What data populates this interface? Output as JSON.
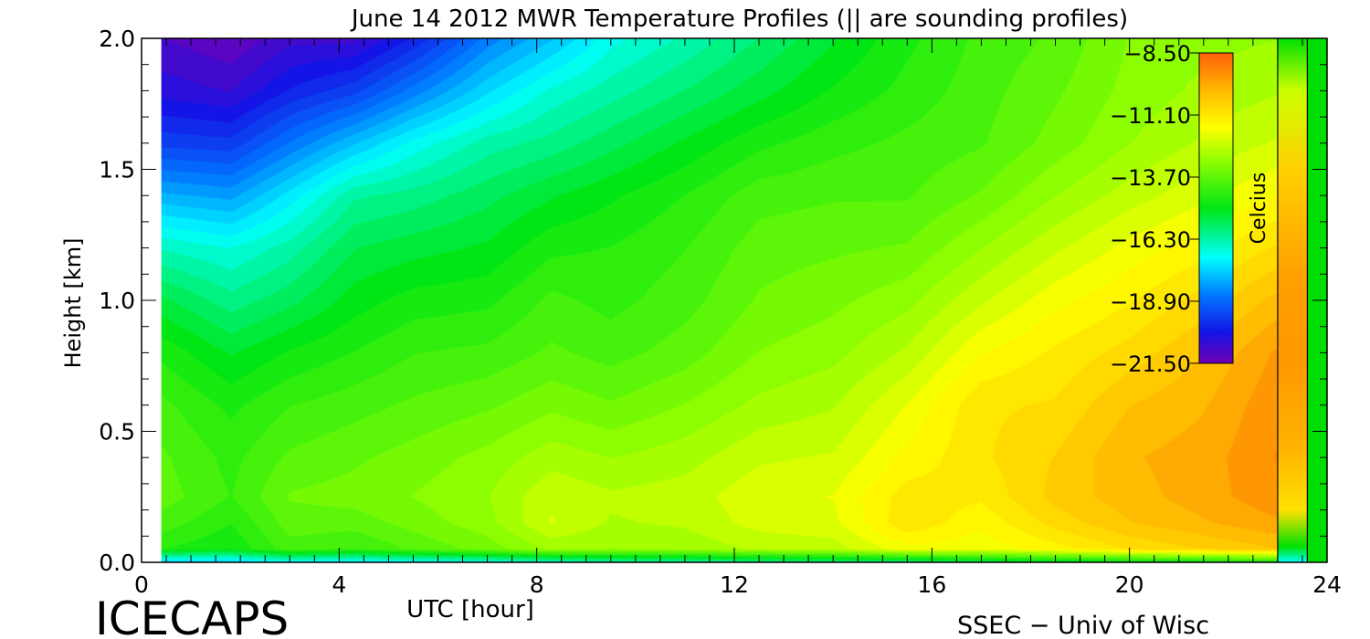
{
  "chart_data": {
    "type": "heatmap",
    "title": "June 14 2012 MWR Temperature Profiles (|| are sounding profiles)",
    "xlabel": "UTC [hour]",
    "ylabel": "Height [km]",
    "xlim": [
      0,
      24
    ],
    "ylim": [
      0,
      2
    ],
    "x_ticks": [
      0,
      4,
      8,
      12,
      16,
      20,
      24
    ],
    "x_tick_labels": [
      "0",
      "4",
      "8",
      "12",
      "16",
      "20",
      "24"
    ],
    "y_ticks": [
      0,
      0.5,
      1.0,
      1.5,
      2.0
    ],
    "y_tick_labels": [
      "0.0",
      "0.5",
      "1.0",
      "1.5",
      "2.0"
    ],
    "data_start_hour": 0.4,
    "sounding_profile_hours": [
      23.0,
      23.6
    ],
    "colorbar": {
      "label": "Celcius",
      "min": -21.5,
      "max": -8.5,
      "tick_values": [
        -8.5,
        -11.1,
        -13.7,
        -16.3,
        -18.9,
        -21.5
      ],
      "tick_labels": [
        "−8.50",
        "−11.10",
        "−13.70",
        "−16.30",
        "−18.90",
        "−21.50"
      ]
    },
    "time_hours": [
      0.4,
      1.8,
      3.0,
      4.3,
      5.5,
      7.0,
      8.3,
      9.5,
      11.0,
      12.5,
      14.0,
      15.5,
      17.0,
      18.5,
      20.0,
      21.5,
      22.95
    ],
    "height_km": [
      0.0,
      0.05,
      0.15,
      0.25,
      0.4,
      0.6,
      0.8,
      1.0,
      1.2,
      1.4,
      1.6,
      1.8,
      2.0
    ],
    "temperature_c": [
      [
        -17.5,
        -14.5,
        -14.0,
        -13.7,
        -13.8,
        -14.1,
        -14.6,
        -15.4,
        -16.5,
        -18.0,
        -19.5,
        -20.5,
        -21.0
      ],
      [
        -17.5,
        -14.8,
        -14.5,
        -14.2,
        -14.3,
        -14.6,
        -15.2,
        -16.0,
        -16.8,
        -18.2,
        -19.6,
        -20.7,
        -21.3
      ],
      [
        -17.0,
        -14.0,
        -13.7,
        -13.5,
        -13.8,
        -14.2,
        -14.8,
        -15.6,
        -16.3,
        -17.3,
        -18.7,
        -20.0,
        -20.8
      ],
      [
        -17.2,
        -14.2,
        -13.7,
        -13.4,
        -13.6,
        -14.0,
        -14.5,
        -15.0,
        -15.5,
        -16.2,
        -17.8,
        -19.5,
        -20.8
      ],
      [
        -17.0,
        -13.8,
        -13.4,
        -13.2,
        -13.4,
        -13.8,
        -14.2,
        -14.7,
        -15.3,
        -16.0,
        -17.0,
        -18.6,
        -20.0
      ],
      [
        -16.8,
        -13.4,
        -13.0,
        -12.9,
        -13.1,
        -13.6,
        -14.1,
        -14.6,
        -15.1,
        -15.6,
        -16.3,
        -17.5,
        -18.6
      ],
      [
        -16.5,
        -12.8,
        -12.2,
        -12.3,
        -12.7,
        -13.3,
        -13.8,
        -14.1,
        -14.6,
        -15.2,
        -16.0,
        -16.7,
        -17.8
      ],
      [
        -16.3,
        -12.9,
        -12.6,
        -12.5,
        -12.9,
        -13.5,
        -14.0,
        -14.3,
        -14.5,
        -14.9,
        -15.6,
        -16.3,
        -16.9
      ],
      [
        -16.2,
        -12.8,
        -12.5,
        -12.4,
        -12.7,
        -13.2,
        -13.7,
        -14.0,
        -14.2,
        -14.5,
        -15.1,
        -15.8,
        -16.4
      ],
      [
        -16.0,
        -12.5,
        -12.1,
        -12.0,
        -12.3,
        -12.8,
        -13.2,
        -13.5,
        -13.7,
        -14.0,
        -14.6,
        -15.3,
        -15.8
      ],
      [
        -15.9,
        -12.4,
        -12.0,
        -11.9,
        -12.2,
        -12.6,
        -13.0,
        -13.3,
        -13.6,
        -13.9,
        -14.3,
        -14.8,
        -15.2
      ],
      [
        -15.8,
        -11.7,
        -11.0,
        -11.1,
        -11.5,
        -11.9,
        -12.5,
        -13.0,
        -13.5,
        -13.9,
        -14.1,
        -14.4,
        -14.6
      ],
      [
        -15.5,
        -11.8,
        -11.5,
        -11.2,
        -11.0,
        -11.0,
        -11.6,
        -12.3,
        -12.9,
        -13.5,
        -13.9,
        -14.0,
        -14.1
      ],
      [
        -15.2,
        -11.4,
        -10.8,
        -10.5,
        -10.6,
        -10.9,
        -11.2,
        -11.7,
        -12.3,
        -12.9,
        -13.4,
        -13.6,
        -13.8
      ],
      [
        -15.0,
        -10.9,
        -10.3,
        -10.1,
        -10.0,
        -10.3,
        -10.8,
        -11.3,
        -11.8,
        -12.4,
        -12.9,
        -13.1,
        -13.2
      ],
      [
        -14.8,
        -10.6,
        -10.0,
        -9.8,
        -9.8,
        -10.0,
        -10.3,
        -10.8,
        -11.4,
        -12.0,
        -12.5,
        -12.8,
        -13.0
      ],
      [
        -14.6,
        -10.3,
        -9.7,
        -9.4,
        -9.3,
        -9.4,
        -9.6,
        -10.2,
        -10.9,
        -11.6,
        -12.2,
        -12.6,
        -12.9
      ]
    ]
  }
}
